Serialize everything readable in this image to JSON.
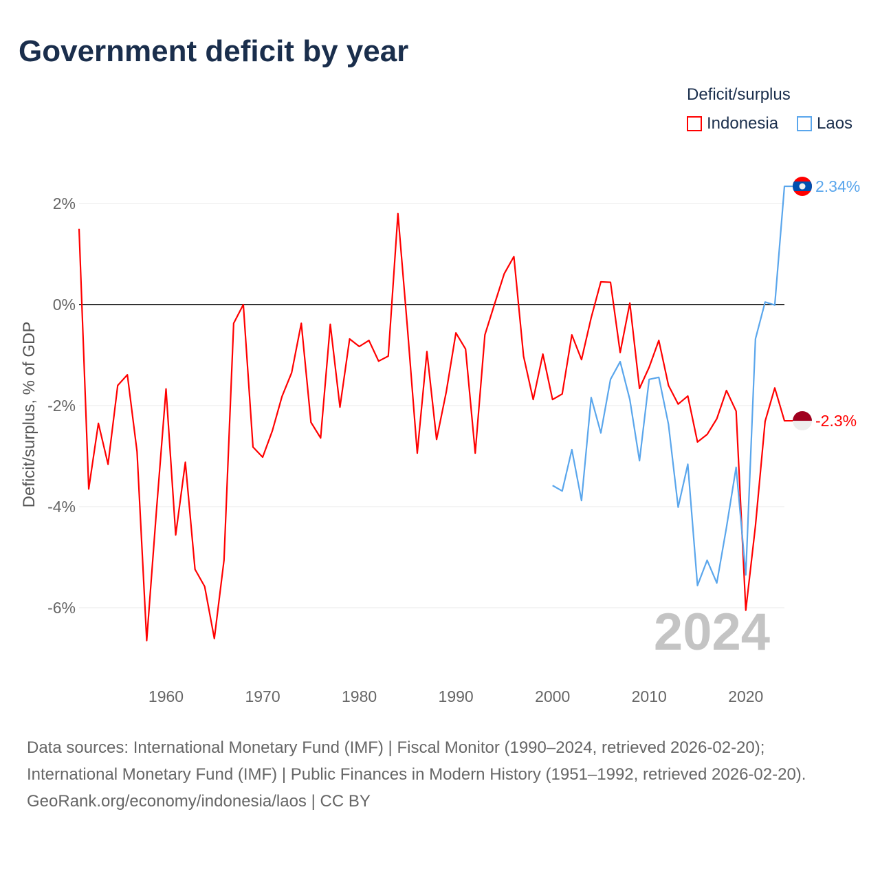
{
  "title": "Government deficit by year",
  "legend": {
    "title": "Deficit/surplus",
    "items": [
      {
        "label": "Indonesia",
        "color": "#ff0000"
      },
      {
        "label": "Laos",
        "color": "#5aa6ec"
      }
    ]
  },
  "year_watermark": "2024",
  "sources": {
    "line1": "Data sources: International Monetary Fund (IMF) | Fiscal Monitor (1990–2024, retrieved 2026-02-20);",
    "line2": "International Monetary Fund (IMF) | Public Finances in Modern History (1951–1992, retrieved 2026-02-20).",
    "line3": "GeoRank.org/economy/indonesia/laos | CC BY"
  },
  "chart_data": {
    "type": "line",
    "title": "Government deficit by year",
    "ylabel": "Deficit/surplus, % of GDP",
    "xlabel": "",
    "xlim": [
      1951,
      2024
    ],
    "ylim": [
      -7,
      3
    ],
    "x_ticks": [
      1960,
      1970,
      1980,
      1990,
      2000,
      2010,
      2020
    ],
    "y_ticks": [
      {
        "value": 2,
        "label": "2%"
      },
      {
        "value": 0,
        "label": "0%"
      },
      {
        "value": -2,
        "label": "-2%"
      },
      {
        "value": -4,
        "label": "-4%"
      },
      {
        "value": -6,
        "label": "-6%"
      }
    ],
    "grid": true,
    "legend_position": "top-right",
    "series": [
      {
        "name": "Indonesia",
        "color": "#ff0000",
        "end_label": "-2.3%",
        "start_year": 1951,
        "values": [
          1.5,
          -3.65,
          -2.35,
          -3.16,
          -1.6,
          -1.39,
          -2.91,
          -6.65,
          -4.1,
          -1.67,
          -4.56,
          -3.12,
          -5.24,
          -5.58,
          -6.61,
          -5.06,
          -0.37,
          0,
          -2.82,
          -3.02,
          -2.5,
          -1.82,
          -1.35,
          -0.37,
          -2.33,
          -2.64,
          -0.39,
          -2.03,
          -0.68,
          -0.83,
          -0.71,
          -1.12,
          -1.02,
          1.8,
          -0.5,
          -2.94,
          -0.93,
          -2.67,
          -1.73,
          -0.56,
          -0.88,
          -2.94,
          -0.6,
          0.01,
          0.61,
          0.95,
          -1.02,
          -1.88,
          -0.98,
          -1.88,
          -1.77,
          -0.6,
          -1.09,
          -0.26,
          0.45,
          0.44,
          -0.95,
          0.03,
          -1.66,
          -1.24,
          -0.71,
          -1.6,
          -1.97,
          -1.81,
          -2.72,
          -2.57,
          -2.26,
          -1.7,
          -2.11,
          -6.05,
          -4.38,
          -2.31,
          -1.65,
          -2.3
        ]
      },
      {
        "name": "Laos",
        "color": "#5aa6ec",
        "end_label": "2.34%",
        "start_year": 2000,
        "values": [
          -3.58,
          -3.69,
          -2.87,
          -3.88,
          -1.84,
          -2.54,
          -1.48,
          -1.13,
          -1.88,
          -3.09,
          -1.48,
          -1.44,
          -2.37,
          -4.01,
          -3.16,
          -5.56,
          -5.06,
          -5.51,
          -4.41,
          -3.22,
          -5.35,
          -0.68,
          0.05,
          -0.01,
          2.34
        ]
      }
    ]
  }
}
